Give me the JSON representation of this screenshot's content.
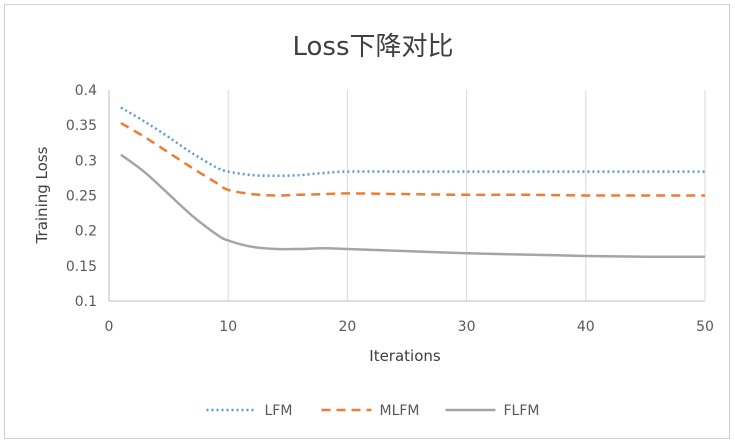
{
  "chart_data": {
    "type": "line",
    "title": "Loss下降对比",
    "xlabel": "Iterations",
    "ylabel": "Training Loss",
    "xlim": [
      0,
      50
    ],
    "ylim": [
      0.1,
      0.4
    ],
    "xticks": [
      0,
      10,
      20,
      30,
      40,
      50
    ],
    "yticks": [
      0.1,
      0.15,
      0.2,
      0.25,
      0.3,
      0.35,
      0.4
    ],
    "xtick_labels": [
      "0",
      "10",
      "20",
      "30",
      "40",
      "50"
    ],
    "ytick_labels": [
      "0.1",
      "0.15",
      "0.2",
      "0.25",
      "0.3",
      "0.35",
      "0.4"
    ],
    "grid": "vertical",
    "legend_position": "bottom",
    "series": [
      {
        "name": "LFM",
        "color": "#5B9BD5",
        "style": "dotted",
        "x": [
          1,
          3,
          5,
          7,
          9,
          10,
          12,
          14,
          16,
          18,
          20,
          25,
          30,
          35,
          40,
          45,
          50
        ],
        "y": [
          0.375,
          0.355,
          0.333,
          0.31,
          0.29,
          0.284,
          0.279,
          0.278,
          0.279,
          0.282,
          0.284,
          0.284,
          0.284,
          0.284,
          0.284,
          0.284,
          0.284
        ]
      },
      {
        "name": "MLFM",
        "color": "#ED7D31",
        "style": "dashed",
        "x": [
          1,
          3,
          5,
          7,
          9,
          10,
          12,
          14,
          16,
          18,
          20,
          25,
          30,
          35,
          40,
          45,
          50
        ],
        "y": [
          0.353,
          0.333,
          0.311,
          0.289,
          0.268,
          0.258,
          0.252,
          0.25,
          0.251,
          0.252,
          0.253,
          0.252,
          0.251,
          0.251,
          0.25,
          0.25,
          0.25
        ]
      },
      {
        "name": "FLFM",
        "color": "#A5A5A5",
        "style": "solid",
        "x": [
          1,
          3,
          5,
          7,
          9,
          10,
          12,
          14,
          16,
          18,
          20,
          25,
          30,
          35,
          40,
          45,
          50
        ],
        "y": [
          0.308,
          0.283,
          0.252,
          0.221,
          0.195,
          0.186,
          0.177,
          0.174,
          0.174,
          0.175,
          0.174,
          0.171,
          0.168,
          0.166,
          0.164,
          0.163,
          0.163
        ]
      }
    ]
  }
}
